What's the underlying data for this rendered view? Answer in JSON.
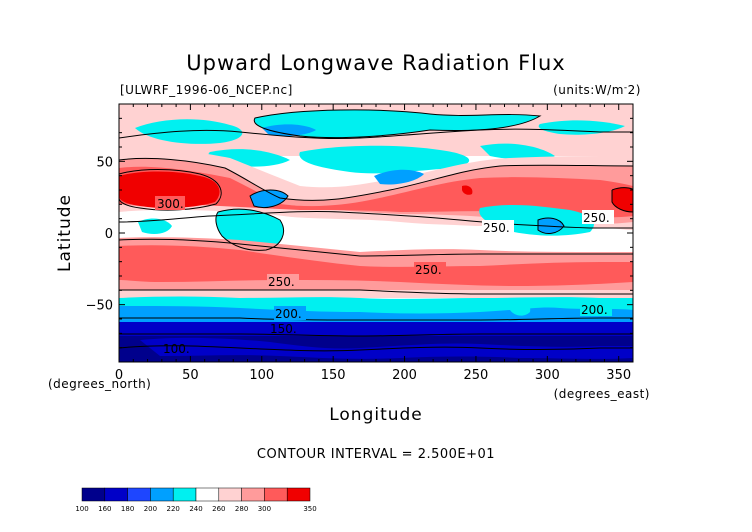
{
  "header": {
    "title": "Upward Longwave Radiation Flux",
    "file_label": "[ULWRF_1996-06_NCEP.nc]",
    "units_label": "(units:W/m^2)"
  },
  "footer": {
    "contour_interval": "CONTOUR INTERVAL = 2.500E+01"
  },
  "colors": {
    "levels": [
      "#00008c",
      "#0000c8",
      "#1e46ff",
      "#00a0ff",
      "#00f0f0",
      "#ffffff",
      "#ffd2d2",
      "#ff9b9b",
      "#ff5a5a",
      "#f00000"
    ],
    "contour": "#000000"
  },
  "colorbar": {
    "labels": [
      "100",
      "160",
      "180",
      "200",
      "220",
      "240",
      "260",
      "280",
      "300",
      "350"
    ]
  },
  "contour_labels": [
    "300.",
    "250.",
    "250.",
    "250.",
    "250.",
    "200.",
    "200.",
    "150.",
    "100."
  ],
  "chart_data": {
    "type": "heatmap",
    "title": "Upward Longwave Radiation Flux",
    "subtitle": "[ULWRF_1996-06_NCEP.nc]",
    "units": "(units:W/m^2)",
    "xlabel": "Longitude",
    "ylabel": "Latitude",
    "x_unit_label": "(degrees_east)",
    "y_unit_label": "(degrees_north)",
    "xlim": [
      0,
      360
    ],
    "ylim": [
      -90,
      90
    ],
    "x_ticks": [
      0,
      50,
      100,
      150,
      200,
      250,
      300,
      350
    ],
    "y_ticks": [
      50,
      0,
      -50
    ],
    "contour_interval": 25,
    "color_levels": [
      100,
      160,
      180,
      200,
      220,
      240,
      260,
      280,
      300,
      350
    ],
    "lat_band_values": [
      {
        "lat_range": [
          60,
          90
        ],
        "value": 225
      },
      {
        "lat_range": [
          40,
          60
        ],
        "value": 230
      },
      {
        "lat_range": [
          10,
          40
        ],
        "value": 280
      },
      {
        "lat_range": [
          -10,
          10
        ],
        "value": 240
      },
      {
        "lat_range": [
          -40,
          -10
        ],
        "value": 265
      },
      {
        "lat_range": [
          -55,
          -40
        ],
        "value": 225
      },
      {
        "lat_range": [
          -70,
          -55
        ],
        "value": 190
      },
      {
        "lat_range": [
          -90,
          -70
        ],
        "value": 140
      }
    ],
    "features": [
      {
        "lon_range": [
          0,
          60
        ],
        "lat_range": [
          10,
          40
        ],
        "value": 300
      },
      {
        "lon_range": [
          330,
          360
        ],
        "lat_range": [
          15,
          30
        ],
        "value": 300
      },
      {
        "lon_range": [
          100,
          150
        ],
        "lat_range": [
          -5,
          25
        ],
        "value": 230
      },
      {
        "lon_range": [
          160,
          220
        ],
        "lat_range": [
          30,
          55
        ],
        "value": 210
      }
    ]
  }
}
